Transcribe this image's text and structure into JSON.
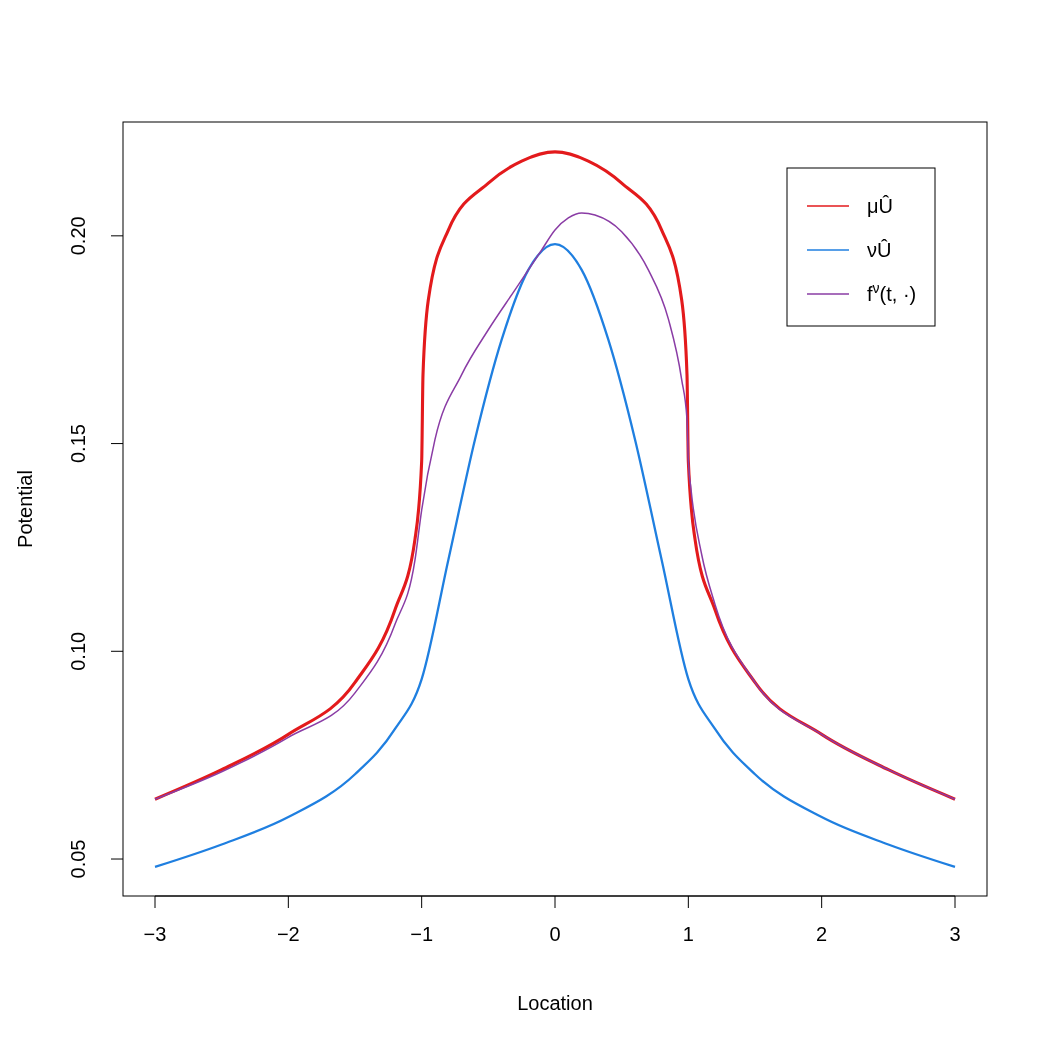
{
  "chart_data": {
    "type": "line",
    "xlabel": "Location",
    "ylabel": "Potential",
    "xlim": [
      -3.24,
      3.24
    ],
    "ylim": [
      0.0411,
      0.2274
    ],
    "xticks": [
      {
        "value": -3,
        "label": "−3"
      },
      {
        "value": -2,
        "label": "−2"
      },
      {
        "value": -1,
        "label": "−1"
      },
      0,
      1,
      2,
      3
    ],
    "yticks": [
      {
        "value": 0.05,
        "label": "0.05"
      },
      {
        "value": 0.1,
        "label": "0.10"
      },
      {
        "value": 0.15,
        "label": "0.15"
      },
      {
        "value": 0.2,
        "label": "0.20"
      }
    ],
    "grid": false,
    "legend": "top right",
    "marker": "none",
    "line_style": "solid",
    "series": [
      {
        "name": "μÛ",
        "color": "#e31a1c",
        "x": [
          -3,
          -2.5,
          -2,
          -1.5,
          -1.2,
          -1.05,
          -1,
          -0.99,
          -0.95,
          -0.8,
          -0.5,
          -0.25,
          0,
          0.25,
          0.5,
          0.8,
          0.95,
          0.99,
          1,
          1.05,
          1.2,
          1.5,
          2,
          2.5,
          3
        ],
        "values": [
          0.0644,
          0.0715,
          0.08,
          0.0925,
          0.11,
          0.127,
          0.1457,
          0.1666,
          0.1846,
          0.2014,
          0.2127,
          0.218,
          0.2202,
          0.218,
          0.2127,
          0.2014,
          0.1846,
          0.1666,
          0.1457,
          0.127,
          0.11,
          0.0925,
          0.08,
          0.0715,
          0.0644
        ]
      },
      {
        "name": "νÛ",
        "color": "#1f7fe0",
        "x": [
          -3,
          -2.5,
          -2,
          -1.5,
          -1.2,
          -1,
          -0.8,
          -0.6,
          -0.4,
          -0.2,
          0,
          0.2,
          0.4,
          0.6,
          0.8,
          1,
          1.2,
          1.5,
          2,
          2.5,
          3
        ],
        "values": [
          0.0481,
          0.0535,
          0.0601,
          0.0704,
          0.0813,
          0.0933,
          0.122,
          0.151,
          0.175,
          0.1918,
          0.198,
          0.1918,
          0.175,
          0.151,
          0.122,
          0.0933,
          0.0813,
          0.0704,
          0.0601,
          0.0535,
          0.0481
        ]
      },
      {
        "name": "f$^{ν}$(t, ·)",
        "color": "#8a3ca5",
        "x": [
          -3,
          -2.5,
          -2,
          -1.5,
          -1.2,
          -1.05,
          -1,
          -0.9,
          -0.7,
          -0.5,
          -0.3,
          -0.1,
          0,
          0.1,
          0.2,
          0.3,
          0.5,
          0.7,
          0.85,
          0.95,
          0.99,
          1,
          1.02,
          1.1,
          1.2,
          1.5,
          2,
          2.5,
          3
        ],
        "values": [
          0.0644,
          0.071,
          0.0793,
          0.09,
          0.1065,
          0.122,
          0.134,
          0.151,
          0.1666,
          0.1774,
          0.187,
          0.1966,
          0.2014,
          0.2043,
          0.2055,
          0.205,
          0.201,
          0.1918,
          0.18,
          0.1654,
          0.1558,
          0.146,
          0.139,
          0.1233,
          0.1113,
          0.0925,
          0.08,
          0.0715,
          0.0644
        ]
      }
    ]
  }
}
